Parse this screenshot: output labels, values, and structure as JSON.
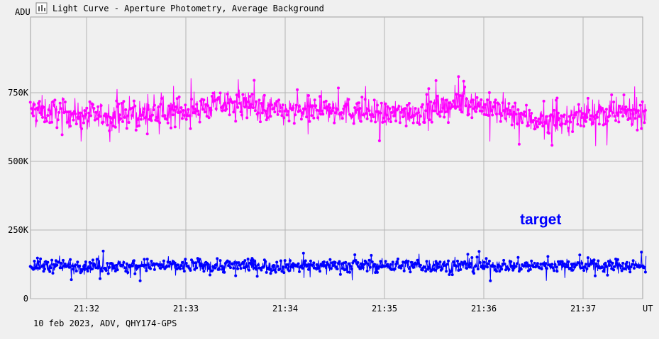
{
  "window": {
    "title": "Light Curve - Aperture Photometry, Average Background",
    "footer": "10 feb 2023, ADV, QHY174-GPS",
    "title_icon": "chart-icon"
  },
  "chart_data": {
    "type": "line",
    "title": "Light Curve - Aperture Photometry, Average Background",
    "xlabel": "UT",
    "ylabel": "ADU",
    "x_range_minutes": [
      21.43,
      21.632
    ],
    "x_ticks": [
      "21:32",
      "21:33",
      "21:34",
      "21:35",
      "21:36",
      "21:37"
    ],
    "y_ticks": [
      "0",
      "250K",
      "500K",
      "750K"
    ],
    "ylim": [
      0,
      1000000
    ],
    "grid": true,
    "markers": true,
    "series": [
      {
        "name": "",
        "color": "#ff00ff",
        "points_summary": {
          "count": 1200,
          "start": "21:31:26",
          "end": "21:37:38",
          "mean_profile": [
            {
              "t": "21:31:26",
              "y": 690000
            },
            {
              "t": "21:32:00",
              "y": 665000
            },
            {
              "t": "21:32:30",
              "y": 670000
            },
            {
              "t": "21:33:00",
              "y": 685000
            },
            {
              "t": "21:33:30",
              "y": 715000
            },
            {
              "t": "21:34:00",
              "y": 680000
            },
            {
              "t": "21:34:30",
              "y": 690000
            },
            {
              "t": "21:35:00",
              "y": 670000
            },
            {
              "t": "21:35:30",
              "y": 690000
            },
            {
              "t": "21:35:50",
              "y": 720000
            },
            {
              "t": "21:36:10",
              "y": 680000
            },
            {
              "t": "21:36:40",
              "y": 635000
            },
            {
              "t": "21:37:00",
              "y": 670000
            },
            {
              "t": "21:37:38",
              "y": 680000
            }
          ],
          "scatter": 45000,
          "min": 545000,
          "max": 825000
        }
      },
      {
        "name": "target",
        "color": "#0000ff",
        "points_summary": {
          "count": 1200,
          "start": "21:31:26",
          "end": "21:37:38",
          "mean": 120000,
          "scatter": 22000,
          "min": 40000,
          "max": 200000
        }
      }
    ],
    "legend": [
      {
        "label": "target",
        "color": "#0000ff",
        "placement": "right, above blue series"
      }
    ]
  }
}
